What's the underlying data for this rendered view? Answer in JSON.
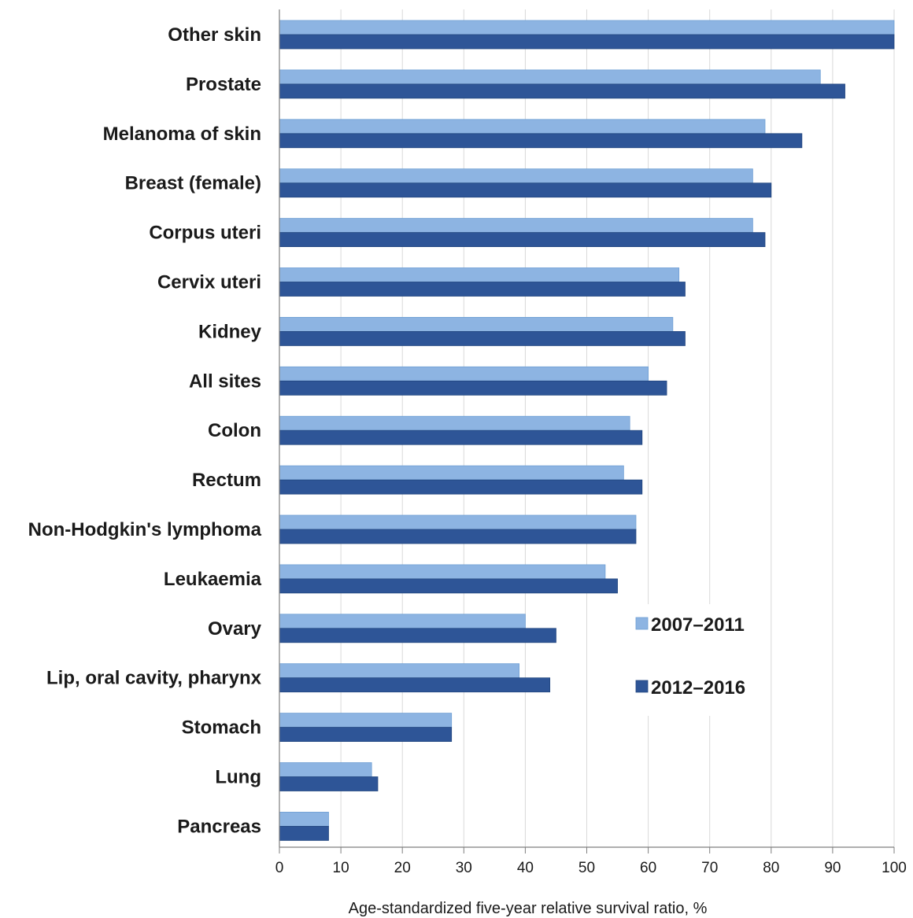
{
  "chart_data": {
    "type": "bar",
    "orientation": "horizontal",
    "title": "",
    "xlabel": "Age-standardized  five-year relative survival ratio, %",
    "ylabel": "",
    "xlim": [
      0,
      100
    ],
    "x_ticks": [
      "0",
      "10",
      "20",
      "30",
      "40",
      "50",
      "60",
      "70",
      "80",
      "90",
      "100"
    ],
    "grid": "vertical",
    "legend_position": "lower-right",
    "categories": [
      "Other skin",
      "Prostate",
      "Melanoma of skin",
      "Breast (female)",
      "Corpus uteri",
      "Cervix uteri",
      "Kidney",
      "All sites",
      "Colon",
      "Rectum",
      "Non-Hodgkin's lymphoma",
      "Leukaemia",
      "Ovary",
      "Lip, oral cavity, pharynx",
      "Stomach",
      "Lung",
      "Pancreas"
    ],
    "series": [
      {
        "name": "2007–2011",
        "color": "#8db4e2",
        "values": [
          100,
          88,
          79,
          77,
          77,
          65,
          64,
          60,
          57,
          56,
          58,
          53,
          40,
          39,
          28,
          15,
          8
        ]
      },
      {
        "name": "2012–2016",
        "color": "#2e5597",
        "values": [
          100,
          92,
          85,
          80,
          79,
          66,
          66,
          63,
          59,
          59,
          58,
          55,
          45,
          44,
          28,
          16,
          8
        ]
      }
    ]
  }
}
